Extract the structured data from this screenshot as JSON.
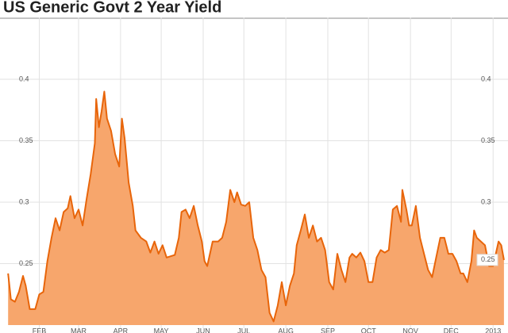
{
  "chart_data": {
    "type": "area",
    "title": "US Generic Govt 2 Year Yield",
    "ylim": [
      0.2,
      0.45
    ],
    "yticks": [
      0.25,
      0.3,
      0.35,
      0.4
    ],
    "xlim": [
      2,
      377
    ],
    "xticks": [
      {
        "value": 31,
        "label": "FEB"
      },
      {
        "value": 60,
        "label": "MAR"
      },
      {
        "value": 91,
        "label": "APR"
      },
      {
        "value": 121,
        "label": "MAY"
      },
      {
        "value": 152,
        "label": "JUN"
      },
      {
        "value": 182,
        "label": "JUL"
      },
      {
        "value": 213,
        "label": "AUG"
      },
      {
        "value": 244,
        "label": "SEP"
      },
      {
        "value": 274,
        "label": "OCT"
      },
      {
        "value": 305,
        "label": "NOV"
      },
      {
        "value": 335,
        "label": "DEC"
      },
      {
        "value": 366,
        "label": "2013"
      }
    ],
    "grid": true,
    "last_value_label": "0.25",
    "series": [
      {
        "color": "#e8650a",
        "fill": "#f7a66c",
        "x": [
          8,
          10,
          13,
          16,
          19,
          21,
          24,
          28,
          31,
          34,
          37,
          40,
          43,
          46,
          49,
          52,
          54,
          57,
          60,
          63,
          66,
          69,
          72,
          73,
          75,
          77,
          79,
          81,
          84,
          87,
          90,
          92,
          94,
          97,
          100,
          102,
          106,
          110,
          113,
          116,
          119,
          122,
          125,
          131,
          134,
          136,
          139,
          142,
          145,
          148,
          151,
          153,
          155,
          159,
          163,
          166,
          169,
          172,
          175,
          177,
          180,
          183,
          186,
          189,
          192,
          195,
          198,
          201,
          204,
          207,
          210,
          213,
          216,
          219,
          221,
          224,
          227,
          230,
          233,
          236,
          239,
          242,
          245,
          248,
          251,
          254,
          257,
          260,
          262,
          265,
          268,
          271,
          274,
          277,
          280,
          283,
          286,
          289,
          292,
          295,
          298,
          299,
          302,
          304,
          306,
          309,
          312,
          315,
          318,
          321,
          324,
          327,
          330,
          333,
          336,
          339,
          342,
          344,
          347,
          350,
          352,
          354,
          357,
          360,
          363,
          366,
          370,
          372,
          374
        ],
        "values": [
          0.242,
          0.221,
          0.219,
          0.227,
          0.24,
          0.232,
          0.213,
          0.213,
          0.225,
          0.227,
          0.252,
          0.271,
          0.287,
          0.277,
          0.292,
          0.295,
          0.305,
          0.287,
          0.294,
          0.281,
          0.303,
          0.323,
          0.348,
          0.384,
          0.361,
          0.374,
          0.39,
          0.368,
          0.358,
          0.339,
          0.329,
          0.368,
          0.352,
          0.316,
          0.297,
          0.277,
          0.271,
          0.268,
          0.259,
          0.268,
          0.258,
          0.265,
          0.255,
          0.257,
          0.271,
          0.292,
          0.294,
          0.287,
          0.297,
          0.281,
          0.268,
          0.252,
          0.248,
          0.268,
          0.268,
          0.271,
          0.284,
          0.31,
          0.3,
          0.308,
          0.298,
          0.297,
          0.3,
          0.271,
          0.261,
          0.245,
          0.239,
          0.21,
          0.203,
          0.216,
          0.235,
          0.216,
          0.232,
          0.242,
          0.265,
          0.277,
          0.29,
          0.271,
          0.281,
          0.268,
          0.271,
          0.261,
          0.235,
          0.229,
          0.258,
          0.245,
          0.235,
          0.255,
          0.258,
          0.255,
          0.259,
          0.252,
          0.235,
          0.235,
          0.255,
          0.261,
          0.259,
          0.261,
          0.294,
          0.297,
          0.284,
          0.31,
          0.294,
          0.281,
          0.281,
          0.297,
          0.271,
          0.258,
          0.245,
          0.239,
          0.255,
          0.271,
          0.271,
          0.258,
          0.258,
          0.252,
          0.242,
          0.242,
          0.235,
          0.252,
          0.277,
          0.271,
          0.268,
          0.265,
          0.248,
          0.248,
          0.268,
          0.265,
          0.253
        ]
      }
    ]
  }
}
